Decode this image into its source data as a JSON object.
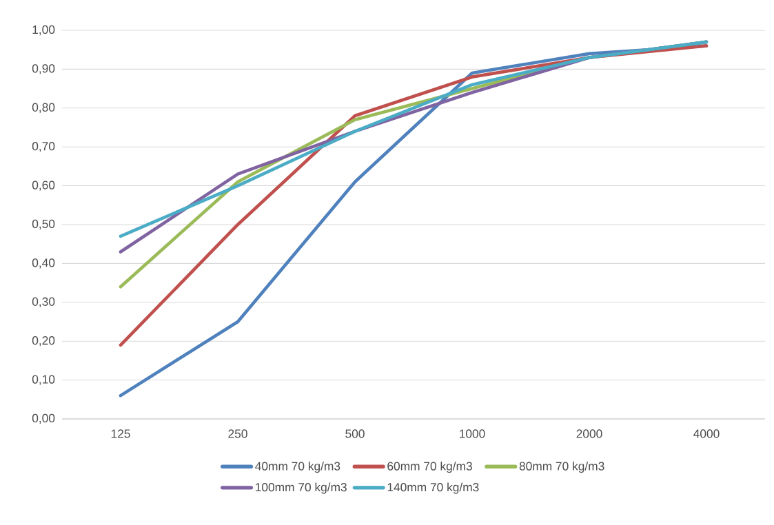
{
  "chart_data": {
    "type": "line",
    "categories": [
      "125",
      "250",
      "500",
      "1000",
      "2000",
      "4000"
    ],
    "series": [
      {
        "name": "40mm 70 kg/m3",
        "color": "#4f81bd",
        "values": [
          0.06,
          0.25,
          0.61,
          0.89,
          0.94,
          0.96
        ]
      },
      {
        "name": "60mm 70 kg/m3",
        "color": "#c0504d",
        "values": [
          0.19,
          0.5,
          0.78,
          0.88,
          0.93,
          0.96
        ]
      },
      {
        "name": "80mm 70 kg/m3",
        "color": "#9bbb59",
        "values": [
          0.34,
          0.61,
          0.77,
          0.85,
          0.93,
          0.97
        ]
      },
      {
        "name": "100mm 70 kg/m3",
        "color": "#8064a2",
        "values": [
          0.43,
          0.63,
          0.74,
          0.84,
          0.93,
          0.97
        ]
      },
      {
        "name": "140mm 70 kg/m3",
        "color": "#4bacc6",
        "values": [
          0.47,
          0.6,
          0.74,
          0.86,
          0.93,
          0.97
        ]
      }
    ],
    "ylim": [
      0,
      1
    ],
    "yticks": [
      {
        "value": 0,
        "label": "0,00"
      },
      {
        "value": 0.1,
        "label": "0,10"
      },
      {
        "value": 0.2,
        "label": "0,20"
      },
      {
        "value": 0.3,
        "label": "0,30"
      },
      {
        "value": 0.4,
        "label": "0,40"
      },
      {
        "value": 0.5,
        "label": "0,50"
      },
      {
        "value": 0.6,
        "label": "0,60"
      },
      {
        "value": 0.7,
        "label": "0,70"
      },
      {
        "value": 0.8,
        "label": "0,80"
      },
      {
        "value": 0.9,
        "label": "0,90"
      },
      {
        "value": 1,
        "label": "1,00"
      }
    ],
    "grid": "y",
    "legend": "bottom",
    "marker": "none",
    "line_style": "solid"
  }
}
